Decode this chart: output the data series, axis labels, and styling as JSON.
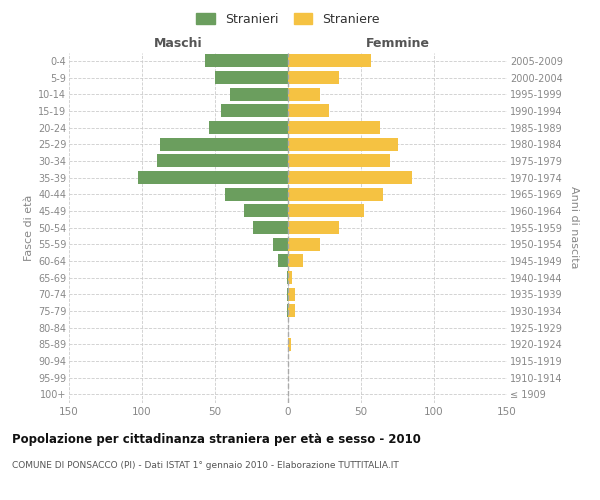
{
  "age_groups": [
    "100+",
    "95-99",
    "90-94",
    "85-89",
    "80-84",
    "75-79",
    "70-74",
    "65-69",
    "60-64",
    "55-59",
    "50-54",
    "45-49",
    "40-44",
    "35-39",
    "30-34",
    "25-29",
    "20-24",
    "15-19",
    "10-14",
    "5-9",
    "0-4"
  ],
  "birth_years": [
    "≤ 1909",
    "1910-1914",
    "1915-1919",
    "1920-1924",
    "1925-1929",
    "1930-1934",
    "1935-1939",
    "1940-1944",
    "1945-1949",
    "1950-1954",
    "1955-1959",
    "1960-1964",
    "1965-1969",
    "1970-1974",
    "1975-1979",
    "1980-1984",
    "1985-1989",
    "1990-1994",
    "1995-1999",
    "2000-2004",
    "2005-2009"
  ],
  "males": [
    0,
    0,
    0,
    0,
    0,
    1,
    1,
    1,
    7,
    10,
    24,
    30,
    43,
    103,
    90,
    88,
    54,
    46,
    40,
    50,
    57
  ],
  "females": [
    0,
    0,
    0,
    2,
    0,
    5,
    5,
    3,
    10,
    22,
    35,
    52,
    65,
    85,
    70,
    75,
    63,
    28,
    22,
    35,
    57
  ],
  "male_color": "#6b9e5e",
  "female_color": "#f5c242",
  "bar_height": 0.78,
  "xlim": 150,
  "title": "Popolazione per cittadinanza straniera per età e sesso - 2010",
  "subtitle": "COMUNE DI PONSACCO (PI) - Dati ISTAT 1° gennaio 2010 - Elaborazione TUTTITALIA.IT",
  "ylabel_left": "Fasce di età",
  "ylabel_right": "Anni di nascita",
  "header_left": "Maschi",
  "header_right": "Femmine",
  "legend_male": "Stranieri",
  "legend_female": "Straniere",
  "background_color": "#ffffff",
  "grid_color": "#cccccc",
  "label_color": "#888888",
  "header_color": "#555555",
  "title_color": "#111111",
  "subtitle_color": "#555555",
  "xticks": [
    -150,
    -100,
    -50,
    0,
    50,
    100,
    150
  ]
}
